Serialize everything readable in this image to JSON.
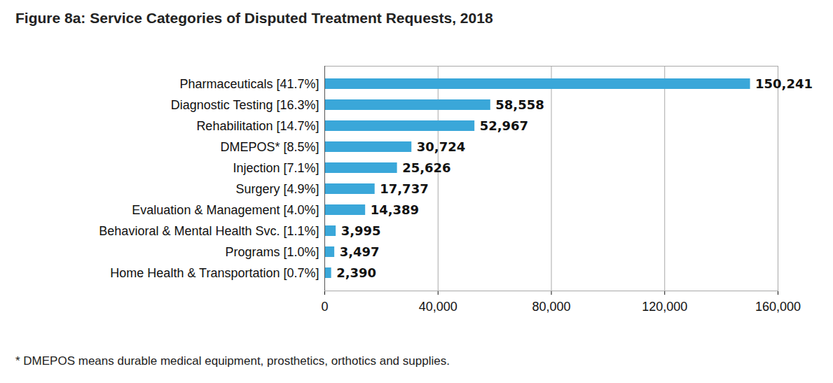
{
  "chart_data": {
    "type": "bar",
    "orientation": "horizontal",
    "title": "Figure 8a: Service Categories of Disputed Treatment Requests, 2018",
    "caption": "* DMEPOS means durable medical equipment, prosthetics, orthotics and supplies.",
    "categories": [
      "Pharmaceuticals [41.7%]",
      "Diagnostic Testing [16.3%]",
      "Rehabilitation [14.7%]",
      "DMEPOS* [8.5%]",
      "Injection [7.1%]",
      "Surgery [4.9%]",
      "Evaluation & Management [4.0%]",
      "Behavioral & Mental Health Svc. [1.1%]",
      "Programs [1.0%]",
      "Home Health & Transportation [0.7%]"
    ],
    "values": [
      150241,
      58558,
      52967,
      30724,
      25626,
      17737,
      14389,
      3995,
      3497,
      2390
    ],
    "value_labels": [
      "150,241",
      "58,558",
      "52,967",
      "30,724",
      "25,626",
      "17,737",
      "14,389",
      "3,995",
      "3,497",
      "2,390"
    ],
    "data_labels": true,
    "color": "#3aa7d9",
    "xlim": [
      0,
      160000
    ],
    "xticks": [
      0,
      {
        "value": 40000,
        "label": "40,000"
      },
      {
        "value": 80000,
        "label": "80,000"
      },
      {
        "value": 120000,
        "label": "120,000"
      },
      {
        "value": 160000,
        "label": "160,000"
      }
    ],
    "grid": true
  }
}
